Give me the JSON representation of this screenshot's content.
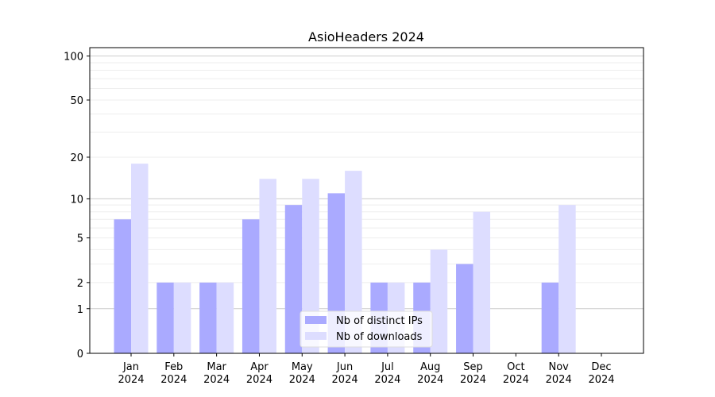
{
  "chart_data": {
    "type": "bar",
    "title": "AsioHeaders 2024",
    "xlabel": "",
    "ylabel": "",
    "yscale": "symlog (log10(1+y))",
    "ylim": [
      0,
      114
    ],
    "yticks": [
      0,
      1,
      2,
      5,
      10,
      20,
      50,
      100
    ],
    "grid": true,
    "legend_placement": "bottom-center",
    "categories": [
      "Jan\n2024",
      "Feb\n2024",
      "Mar\n2024",
      "Apr\n2024",
      "May\n2024",
      "Jun\n2024",
      "Jul\n2024",
      "Aug\n2024",
      "Sep\n2024",
      "Oct\n2024",
      "Nov\n2024",
      "Dec\n2024"
    ],
    "series": [
      {
        "name": "Nb of distinct IPs",
        "color": "#aaaaff",
        "values": [
          7,
          2,
          2,
          7,
          9,
          11,
          2,
          2,
          3,
          0,
          2,
          0
        ]
      },
      {
        "name": "Nb of downloads",
        "color": "#ddddff",
        "values": [
          18,
          2,
          2,
          14,
          14,
          16,
          2,
          4,
          8,
          0,
          9,
          0
        ]
      }
    ]
  }
}
